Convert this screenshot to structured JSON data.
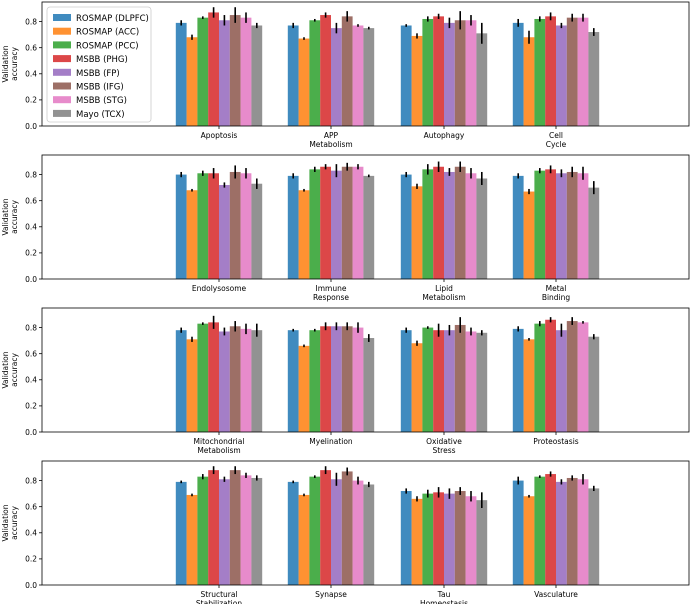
{
  "chart_data": {
    "type": "bar",
    "ylabel": "Validation\naccuracy",
    "ylim": [
      0,
      0.95
    ],
    "yticks": [
      "0.0",
      "0.2",
      "0.4",
      "0.6",
      "0.8"
    ],
    "legend": {
      "placement": "top-left",
      "entries": [
        {
          "name": "ROSMAP (DLPFC)",
          "color": "#1f77b4"
        },
        {
          "name": "ROSMAP (ACC)",
          "color": "#ff7f0e"
        },
        {
          "name": "ROSMAP (PCC)",
          "color": "#2ca02c"
        },
        {
          "name": "MSBB (PHG)",
          "color": "#d62728"
        },
        {
          "name": "MSBB (FP)",
          "color": "#9467bd"
        },
        {
          "name": "MSBB (IFG)",
          "color": "#8c564b"
        },
        {
          "name": "MSBB (STG)",
          "color": "#e377c2"
        },
        {
          "name": "Mayo (TCX)",
          "color": "#7f7f7f"
        }
      ]
    },
    "panels": [
      {
        "categories": [
          "Apoptosis",
          "APP\nMetabolism",
          "Autophagy",
          "Cell\nCycle"
        ],
        "values": [
          [
            0.79,
            0.68,
            0.83,
            0.87,
            0.81,
            0.85,
            0.83,
            0.77
          ],
          [
            0.77,
            0.67,
            0.81,
            0.85,
            0.75,
            0.84,
            0.77,
            0.75
          ],
          [
            0.77,
            0.69,
            0.82,
            0.84,
            0.79,
            0.81,
            0.81,
            0.71
          ],
          [
            0.79,
            0.68,
            0.82,
            0.84,
            0.77,
            0.83,
            0.83,
            0.72
          ]
        ],
        "errors": [
          [
            0.02,
            0.02,
            0.01,
            0.04,
            0.04,
            0.06,
            0.04,
            0.02
          ],
          [
            0.02,
            0.01,
            0.01,
            0.02,
            0.04,
            0.04,
            0.01,
            0.01
          ],
          [
            0.01,
            0.02,
            0.02,
            0.02,
            0.04,
            0.07,
            0.04,
            0.08
          ],
          [
            0.03,
            0.05,
            0.02,
            0.03,
            0.02,
            0.03,
            0.03,
            0.03
          ]
        ]
      },
      {
        "categories": [
          "Endolysosome",
          "Immune\nResponse",
          "Lipid\nMetabolism",
          "Metal\nBinding"
        ],
        "values": [
          [
            0.8,
            0.68,
            0.81,
            0.81,
            0.72,
            0.82,
            0.81,
            0.73
          ],
          [
            0.79,
            0.68,
            0.84,
            0.86,
            0.83,
            0.86,
            0.86,
            0.79
          ],
          [
            0.8,
            0.71,
            0.84,
            0.86,
            0.82,
            0.86,
            0.81,
            0.77
          ],
          [
            0.79,
            0.67,
            0.83,
            0.84,
            0.81,
            0.82,
            0.81,
            0.7
          ]
        ],
        "errors": [
          [
            0.02,
            0.01,
            0.02,
            0.04,
            0.02,
            0.05,
            0.04,
            0.04
          ],
          [
            0.02,
            0.01,
            0.02,
            0.02,
            0.05,
            0.03,
            0.02,
            0.01
          ],
          [
            0.02,
            0.02,
            0.04,
            0.04,
            0.03,
            0.04,
            0.04,
            0.05
          ],
          [
            0.02,
            0.02,
            0.02,
            0.03,
            0.03,
            0.04,
            0.05,
            0.05
          ]
        ]
      },
      {
        "categories": [
          "Mitochondrial\nMetabolism",
          "Myelination",
          "Oxidative\nStress",
          "Proteostasis"
        ],
        "values": [
          [
            0.78,
            0.71,
            0.83,
            0.84,
            0.77,
            0.81,
            0.79,
            0.78
          ],
          [
            0.78,
            0.66,
            0.78,
            0.81,
            0.81,
            0.81,
            0.8,
            0.72
          ],
          [
            0.78,
            0.68,
            0.8,
            0.78,
            0.78,
            0.82,
            0.77,
            0.76
          ],
          [
            0.79,
            0.71,
            0.83,
            0.86,
            0.78,
            0.85,
            0.84,
            0.73
          ]
        ],
        "errors": [
          [
            0.02,
            0.02,
            0.01,
            0.05,
            0.03,
            0.04,
            0.04,
            0.05
          ],
          [
            0.01,
            0.01,
            0.01,
            0.03,
            0.03,
            0.03,
            0.04,
            0.03
          ],
          [
            0.02,
            0.02,
            0.01,
            0.05,
            0.04,
            0.06,
            0.03,
            0.02
          ],
          [
            0.02,
            0.01,
            0.02,
            0.02,
            0.05,
            0.03,
            0.01,
            0.02
          ]
        ]
      },
      {
        "categories": [
          "Structural\nStabilization",
          "Synapse",
          "Tau\nHomeostasis",
          "Vasculature"
        ],
        "values": [
          [
            0.79,
            0.69,
            0.83,
            0.88,
            0.81,
            0.88,
            0.84,
            0.82
          ],
          [
            0.79,
            0.69,
            0.83,
            0.88,
            0.81,
            0.87,
            0.8,
            0.77
          ],
          [
            0.72,
            0.66,
            0.7,
            0.71,
            0.7,
            0.72,
            0.68,
            0.65
          ],
          [
            0.8,
            0.68,
            0.83,
            0.85,
            0.79,
            0.82,
            0.81,
            0.74
          ]
        ],
        "errors": [
          [
            0.01,
            0.01,
            0.02,
            0.03,
            0.02,
            0.03,
            0.02,
            0.02
          ],
          [
            0.01,
            0.01,
            0.01,
            0.03,
            0.05,
            0.03,
            0.03,
            0.02
          ],
          [
            0.02,
            0.02,
            0.03,
            0.04,
            0.04,
            0.03,
            0.04,
            0.06
          ],
          [
            0.03,
            0.01,
            0.01,
            0.02,
            0.02,
            0.02,
            0.04,
            0.02
          ]
        ]
      }
    ]
  }
}
